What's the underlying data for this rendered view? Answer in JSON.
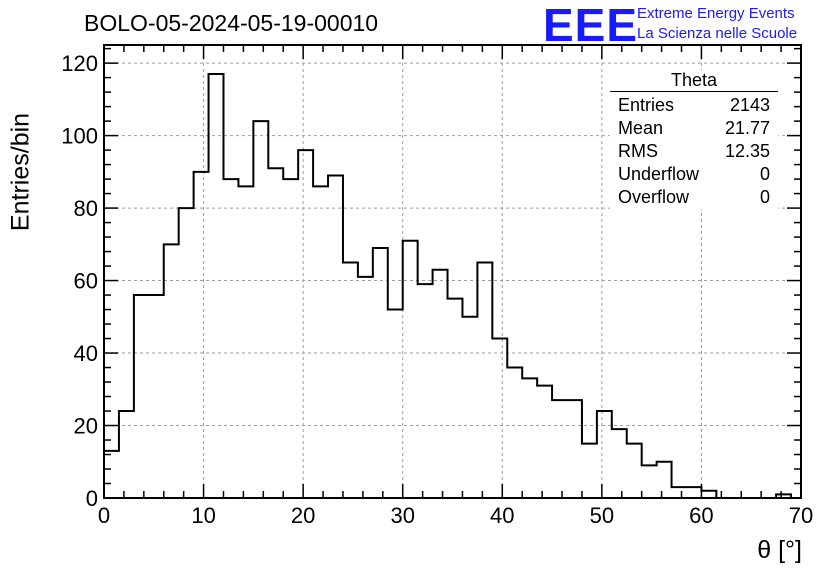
{
  "header": {
    "title": "BOLO-05-2024-05-19-00010",
    "logo_text": "EEE",
    "org_line1": "Extreme Energy Events",
    "org_line2": "La Scienza nelle Scuole"
  },
  "colors": {
    "logo": "#1a1aff",
    "histogram": "#000000",
    "grid": "#9e9e9e"
  },
  "stats": {
    "title": "Theta",
    "rows": [
      {
        "label": "Entries",
        "value": "2143"
      },
      {
        "label": "Mean",
        "value": "21.77"
      },
      {
        "label": "RMS",
        "value": "12.35"
      },
      {
        "label": "Underflow",
        "value": "0"
      },
      {
        "label": "Overflow",
        "value": "0"
      }
    ]
  },
  "chart_data": {
    "type": "bar",
    "style": "step-histogram",
    "title": "BOLO-05-2024-05-19-00010",
    "xlabel": "θ [°]",
    "ylabel": "Entries/bin",
    "xlim": [
      0,
      70
    ],
    "ylim": [
      0,
      125
    ],
    "grid": true,
    "legend": "none",
    "bin_width": 1.5,
    "x_start": 0,
    "xticks": [
      0,
      10,
      20,
      30,
      40,
      50,
      60,
      70
    ],
    "yticks": [
      0,
      20,
      40,
      60,
      80,
      100,
      120
    ],
    "values": [
      13,
      24,
      56,
      56,
      70,
      80,
      90,
      117,
      88,
      86,
      104,
      91,
      88,
      96,
      86,
      89,
      65,
      61,
      69,
      52,
      71,
      59,
      63,
      55,
      50,
      65,
      44,
      36,
      33,
      31,
      27,
      27,
      15,
      24,
      19,
      15,
      9,
      10,
      3,
      3,
      2,
      0,
      0,
      0,
      0,
      1
    ]
  }
}
